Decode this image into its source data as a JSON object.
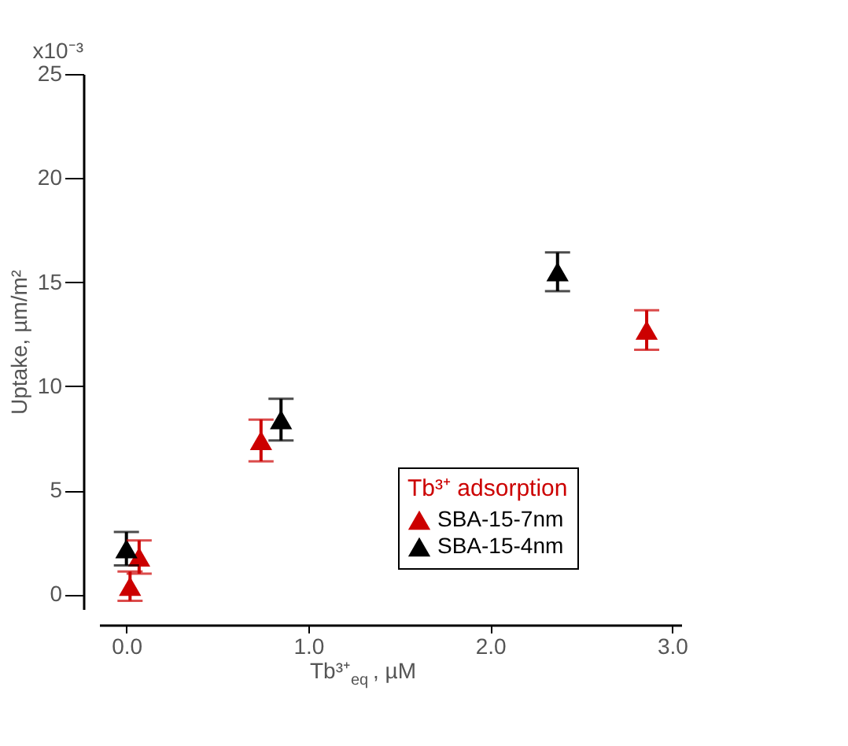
{
  "chart_data": {
    "type": "scatter",
    "xlabel": "Tb³⁺$_{eq}$, µM",
    "ylabel": "Uptake, µm/m²",
    "legend_title": "Tb³⁺ adsorption",
    "xlim": [
      -0.15,
      3.05
    ],
    "xticks": [
      {
        "value": 0,
        "label": "0.0"
      },
      {
        "value": 1,
        "label": "1.0"
      },
      {
        "value": 2,
        "label": "2.0"
      },
      {
        "value": 3,
        "label": "3.0"
      }
    ],
    "ylim": [
      -0.7,
      25
    ],
    "yticks": [
      0,
      5,
      10,
      15,
      20,
      25
    ],
    "annotations": [
      "x10⁻³"
    ],
    "grid": false,
    "legend": "bottom right",
    "marker": "triangle",
    "series": [
      {
        "name": "SBA-15-7nm",
        "color": "#cc0000",
        "x": [
          0.02,
          0.07,
          0.74,
          2.86
        ],
        "values": [
          0.4,
          1.8,
          7.4,
          12.7
        ],
        "errors": [
          0.7,
          0.8,
          1.0,
          0.95
        ]
      },
      {
        "name": "SBA-15-4nm",
        "color": "#000000",
        "x": [
          0.0,
          0.85,
          2.37
        ],
        "values": [
          2.2,
          8.4,
          15.5
        ],
        "errors": [
          0.8,
          1.0,
          0.93
        ]
      }
    ]
  }
}
